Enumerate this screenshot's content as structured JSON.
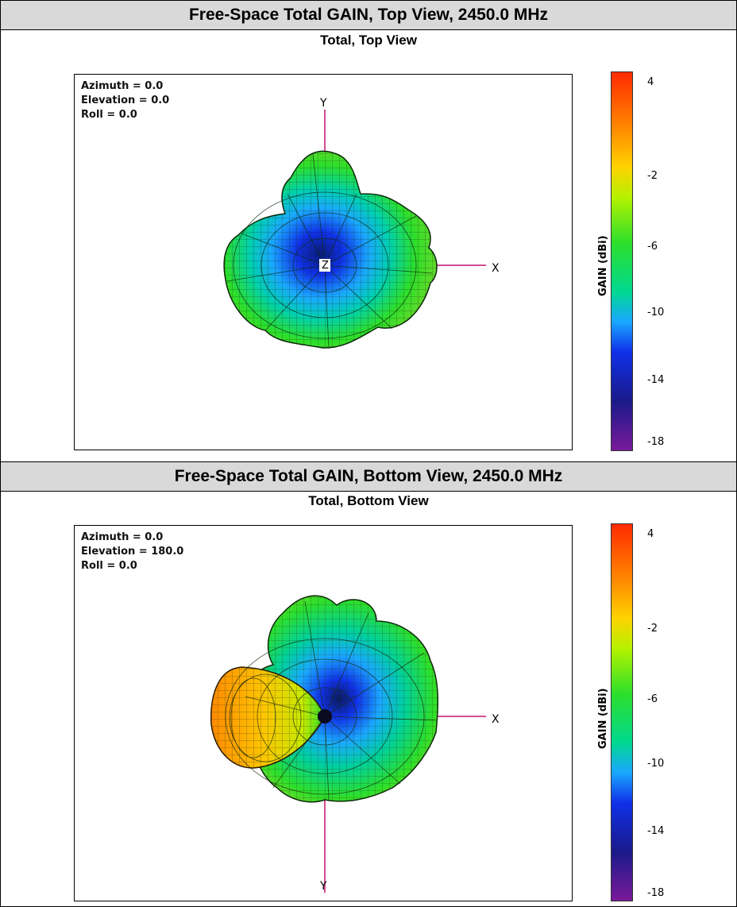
{
  "panels": [
    {
      "banner": "Free-Space Total GAIN, Top View, 2450.0 MHz",
      "subtitle": "Total, Top View",
      "orientation": [
        "Azimuth = 0.0",
        "Elevation = 0.0",
        "Roll = 0.0"
      ],
      "axes": {
        "y": "Y",
        "x": "X",
        "z": "Z"
      },
      "colorbar": {
        "label": "GAIN  (dBi)",
        "ticks": [
          "4",
          "-2",
          "-6",
          "-10",
          "-14",
          "-18"
        ]
      }
    },
    {
      "banner": "Free-Space Total GAIN, Bottom View, 2450.0 MHz",
      "subtitle": "Total, Bottom View",
      "orientation": [
        "Azimuth = 0.0",
        "Elevation = 180.0",
        "Roll = 0.0"
      ],
      "axes": {
        "y": "Y",
        "x": "X"
      },
      "colorbar": {
        "label": "GAIN  (dBi)",
        "ticks": [
          "4",
          "-2",
          "-6",
          "-10",
          "-14",
          "-18"
        ]
      }
    }
  ],
  "chart_data": [
    {
      "type": "3d-radiation-pattern",
      "title": "Free-Space Total GAIN, Top View, 2450.0 MHz",
      "subtitle": "Total, Top View",
      "view": {
        "azimuth": 0.0,
        "elevation": 0.0,
        "roll": 0.0
      },
      "colorbar": {
        "label": "GAIN  (dBi)",
        "range": [
          -18,
          4
        ],
        "ticks": [
          4,
          -2,
          -6,
          -10,
          -14,
          -18
        ]
      },
      "colors": [
        "#ff2a00",
        "#ff8a00",
        "#ffd200",
        "#b5f200",
        "#2ddf2a",
        "#00d890",
        "#1aa7ff",
        "#1030e8",
        "#1a1a8a",
        "#7a1a9a"
      ]
    },
    {
      "type": "3d-radiation-pattern",
      "title": "Free-Space Total GAIN, Bottom View, 2450.0 MHz",
      "subtitle": "Total, Bottom View",
      "view": {
        "azimuth": 0.0,
        "elevation": 180.0,
        "roll": 0.0
      },
      "colorbar": {
        "label": "GAIN  (dBi)",
        "range": [
          -18,
          4
        ],
        "ticks": [
          4,
          -2,
          -6,
          -10,
          -14,
          -18
        ]
      },
      "colors": [
        "#ff2a00",
        "#ff8a00",
        "#ffd200",
        "#b5f200",
        "#2ddf2a",
        "#00d890",
        "#1aa7ff",
        "#1030e8",
        "#1a1a8a",
        "#7a1a9a"
      ]
    }
  ]
}
